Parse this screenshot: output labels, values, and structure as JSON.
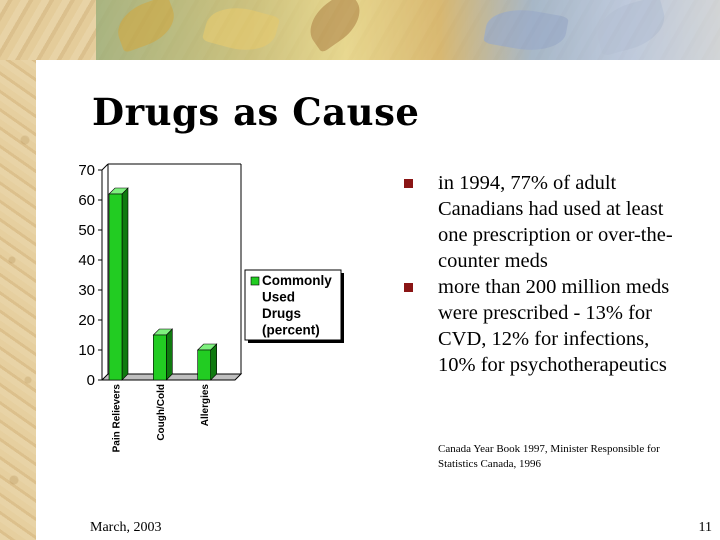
{
  "slide": {
    "title": "Drugs as Cause",
    "bullets": [
      "in 1994, 77% of adult Canadians had used at least one prescription or over-the-counter meds",
      "more than 200 million meds were prescribed  - 13% for CVD, 12% for infections, 10% for psychotherapeutics"
    ],
    "source": "Canada Year Book 1997, Minister Responsible for Statistics Canada, 1996",
    "footer_date": "March, 2003",
    "slide_number": "11"
  },
  "colors": {
    "bar_face": "#22cc22",
    "bar_side": "#0f7a0f",
    "bar_top": "#7ef07e",
    "bullet": "#8a1515"
  },
  "chart_data": {
    "type": "bar",
    "categories": [
      "Pain Relievers",
      "Cough/Cold",
      "Allergies"
    ],
    "series": [
      {
        "name": "Commonly Used Drugs (percent)",
        "values": [
          62,
          15,
          10
        ]
      }
    ],
    "legend_lines": [
      "Commonly",
      "Used",
      "Drugs",
      "(percent)"
    ],
    "yticks": [
      "70",
      "60",
      "50",
      "40",
      "30",
      "20",
      "10",
      "0"
    ],
    "ylim": [
      0,
      70
    ],
    "grid": false,
    "legend_position": "right"
  }
}
